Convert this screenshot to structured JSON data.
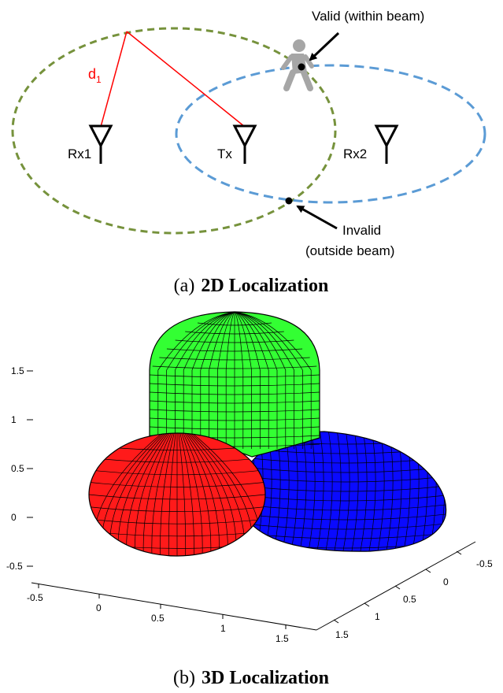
{
  "top": {
    "labels": {
      "d1_main": "d",
      "d1_sub": "1",
      "rx1": "Rx1",
      "tx": "Tx",
      "rx2": "Rx2",
      "valid": "Valid (within beam)",
      "invalid_line1": "Invalid",
      "invalid_line2": "(outside beam)"
    },
    "caption": {
      "tag": "(a)",
      "title": "2D Localization"
    },
    "colors": {
      "ellipse_rx1": "#76923c",
      "ellipse_rx2": "#5b9bd5",
      "distance_lines": "#ff0000",
      "person": "#a6a6a6"
    }
  },
  "bottom": {
    "z_ticks": [
      "1.5",
      "1",
      "0.5",
      "0",
      "-0.5"
    ],
    "x_ticks": [
      "-0.5",
      "0",
      "0.5",
      "1",
      "1.5"
    ],
    "y_ticks": [
      "-0.5",
      "0",
      "0.5",
      "1",
      "1.5"
    ],
    "caption": {
      "tag": "(b)",
      "title": "3D Localization"
    },
    "colors": {
      "lobe_top": "#33ff33",
      "lobe_left": "#ff1a1a",
      "lobe_right": "#0a0aff",
      "mesh": "#000000"
    }
  }
}
